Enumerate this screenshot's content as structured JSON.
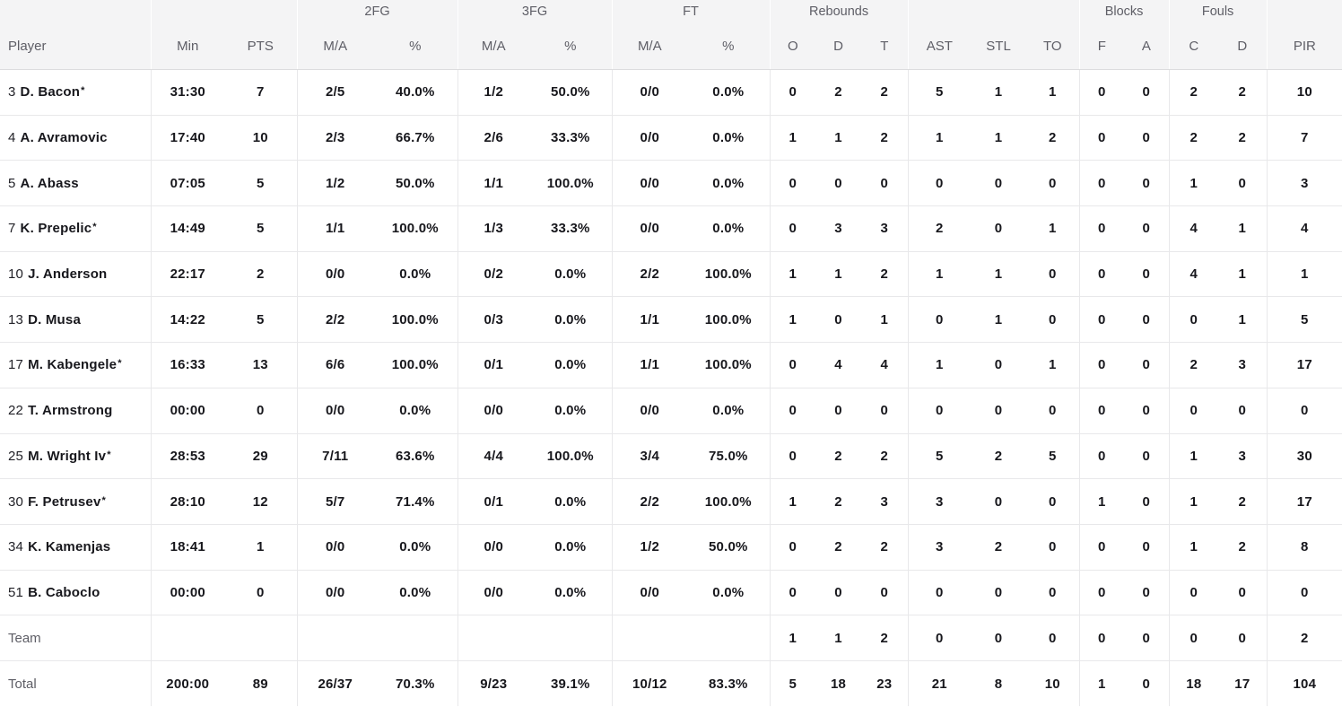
{
  "table": {
    "header_groups": [
      {
        "label": "",
        "span": 1
      },
      {
        "label": "",
        "span": 2
      },
      {
        "label": "2FG",
        "span": 2
      },
      {
        "label": "3FG",
        "span": 2
      },
      {
        "label": "FT",
        "span": 2
      },
      {
        "label": "Rebounds",
        "span": 3
      },
      {
        "label": "",
        "span": 3
      },
      {
        "label": "Blocks",
        "span": 2
      },
      {
        "label": "Fouls",
        "span": 2
      },
      {
        "label": "",
        "span": 1
      }
    ],
    "columns": [
      "Player",
      "Min",
      "PTS",
      "M/A",
      "%",
      "M/A",
      "%",
      "M/A",
      "%",
      "O",
      "D",
      "T",
      "AST",
      "STL",
      "TO",
      "F",
      "A",
      "C",
      "D",
      "PIR"
    ],
    "starter_marker": "*",
    "rows": [
      {
        "num": "3",
        "name": "D. Bacon",
        "starter": true,
        "summary": false,
        "stats": [
          "31:30",
          "7",
          "2/5",
          "40.0%",
          "1/2",
          "50.0%",
          "0/0",
          "0.0%",
          "0",
          "2",
          "2",
          "5",
          "1",
          "1",
          "0",
          "0",
          "2",
          "2",
          "10"
        ]
      },
      {
        "num": "4",
        "name": "A. Avramovic",
        "starter": false,
        "summary": false,
        "stats": [
          "17:40",
          "10",
          "2/3",
          "66.7%",
          "2/6",
          "33.3%",
          "0/0",
          "0.0%",
          "1",
          "1",
          "2",
          "1",
          "1",
          "2",
          "0",
          "0",
          "2",
          "2",
          "7"
        ]
      },
      {
        "num": "5",
        "name": "A. Abass",
        "starter": false,
        "summary": false,
        "stats": [
          "07:05",
          "5",
          "1/2",
          "50.0%",
          "1/1",
          "100.0%",
          "0/0",
          "0.0%",
          "0",
          "0",
          "0",
          "0",
          "0",
          "0",
          "0",
          "0",
          "1",
          "0",
          "3"
        ]
      },
      {
        "num": "7",
        "name": "K. Prepelic",
        "starter": true,
        "summary": false,
        "stats": [
          "14:49",
          "5",
          "1/1",
          "100.0%",
          "1/3",
          "33.3%",
          "0/0",
          "0.0%",
          "0",
          "3",
          "3",
          "2",
          "0",
          "1",
          "0",
          "0",
          "4",
          "1",
          "4"
        ]
      },
      {
        "num": "10",
        "name": "J. Anderson",
        "starter": false,
        "summary": false,
        "stats": [
          "22:17",
          "2",
          "0/0",
          "0.0%",
          "0/2",
          "0.0%",
          "2/2",
          "100.0%",
          "1",
          "1",
          "2",
          "1",
          "1",
          "0",
          "0",
          "0",
          "4",
          "1",
          "1"
        ]
      },
      {
        "num": "13",
        "name": "D. Musa",
        "starter": false,
        "summary": false,
        "stats": [
          "14:22",
          "5",
          "2/2",
          "100.0%",
          "0/3",
          "0.0%",
          "1/1",
          "100.0%",
          "1",
          "0",
          "1",
          "0",
          "1",
          "0",
          "0",
          "0",
          "0",
          "1",
          "5"
        ]
      },
      {
        "num": "17",
        "name": "M. Kabengele",
        "starter": true,
        "summary": false,
        "stats": [
          "16:33",
          "13",
          "6/6",
          "100.0%",
          "0/1",
          "0.0%",
          "1/1",
          "100.0%",
          "0",
          "4",
          "4",
          "1",
          "0",
          "1",
          "0",
          "0",
          "2",
          "3",
          "17"
        ]
      },
      {
        "num": "22",
        "name": "T. Armstrong",
        "starter": false,
        "summary": false,
        "stats": [
          "00:00",
          "0",
          "0/0",
          "0.0%",
          "0/0",
          "0.0%",
          "0/0",
          "0.0%",
          "0",
          "0",
          "0",
          "0",
          "0",
          "0",
          "0",
          "0",
          "0",
          "0",
          "0"
        ]
      },
      {
        "num": "25",
        "name": "M. Wright Iv",
        "starter": true,
        "summary": false,
        "stats": [
          "28:53",
          "29",
          "7/11",
          "63.6%",
          "4/4",
          "100.0%",
          "3/4",
          "75.0%",
          "0",
          "2",
          "2",
          "5",
          "2",
          "5",
          "0",
          "0",
          "1",
          "3",
          "30"
        ]
      },
      {
        "num": "30",
        "name": "F. Petrusev",
        "starter": true,
        "summary": false,
        "stats": [
          "28:10",
          "12",
          "5/7",
          "71.4%",
          "0/1",
          "0.0%",
          "2/2",
          "100.0%",
          "1",
          "2",
          "3",
          "3",
          "0",
          "0",
          "1",
          "0",
          "1",
          "2",
          "17"
        ]
      },
      {
        "num": "34",
        "name": "K. Kamenjas",
        "starter": false,
        "summary": false,
        "stats": [
          "18:41",
          "1",
          "0/0",
          "0.0%",
          "0/0",
          "0.0%",
          "1/2",
          "50.0%",
          "0",
          "2",
          "2",
          "3",
          "2",
          "0",
          "0",
          "0",
          "1",
          "2",
          "8"
        ]
      },
      {
        "num": "51",
        "name": "B. Caboclo",
        "starter": false,
        "summary": false,
        "stats": [
          "00:00",
          "0",
          "0/0",
          "0.0%",
          "0/0",
          "0.0%",
          "0/0",
          "0.0%",
          "0",
          "0",
          "0",
          "0",
          "0",
          "0",
          "0",
          "0",
          "0",
          "0",
          "0"
        ]
      },
      {
        "num": "",
        "name": "Team",
        "starter": false,
        "summary": true,
        "stats": [
          "",
          "",
          "",
          "",
          "",
          "",
          "",
          "",
          "1",
          "1",
          "2",
          "0",
          "0",
          "0",
          "0",
          "0",
          "0",
          "0",
          "2"
        ]
      },
      {
        "num": "",
        "name": "Total",
        "starter": false,
        "summary": true,
        "stats": [
          "200:00",
          "89",
          "26/37",
          "70.3%",
          "9/23",
          "39.1%",
          "10/12",
          "83.3%",
          "5",
          "18",
          "23",
          "21",
          "8",
          "10",
          "1",
          "0",
          "18",
          "17",
          "104"
        ]
      }
    ]
  },
  "colors": {
    "header_background": "#f4f4f5",
    "header_text": "#5e5e66",
    "body_text": "#17171c",
    "row_divider": "#e8e8ea",
    "summary_label_text": "#5e5e66"
  }
}
